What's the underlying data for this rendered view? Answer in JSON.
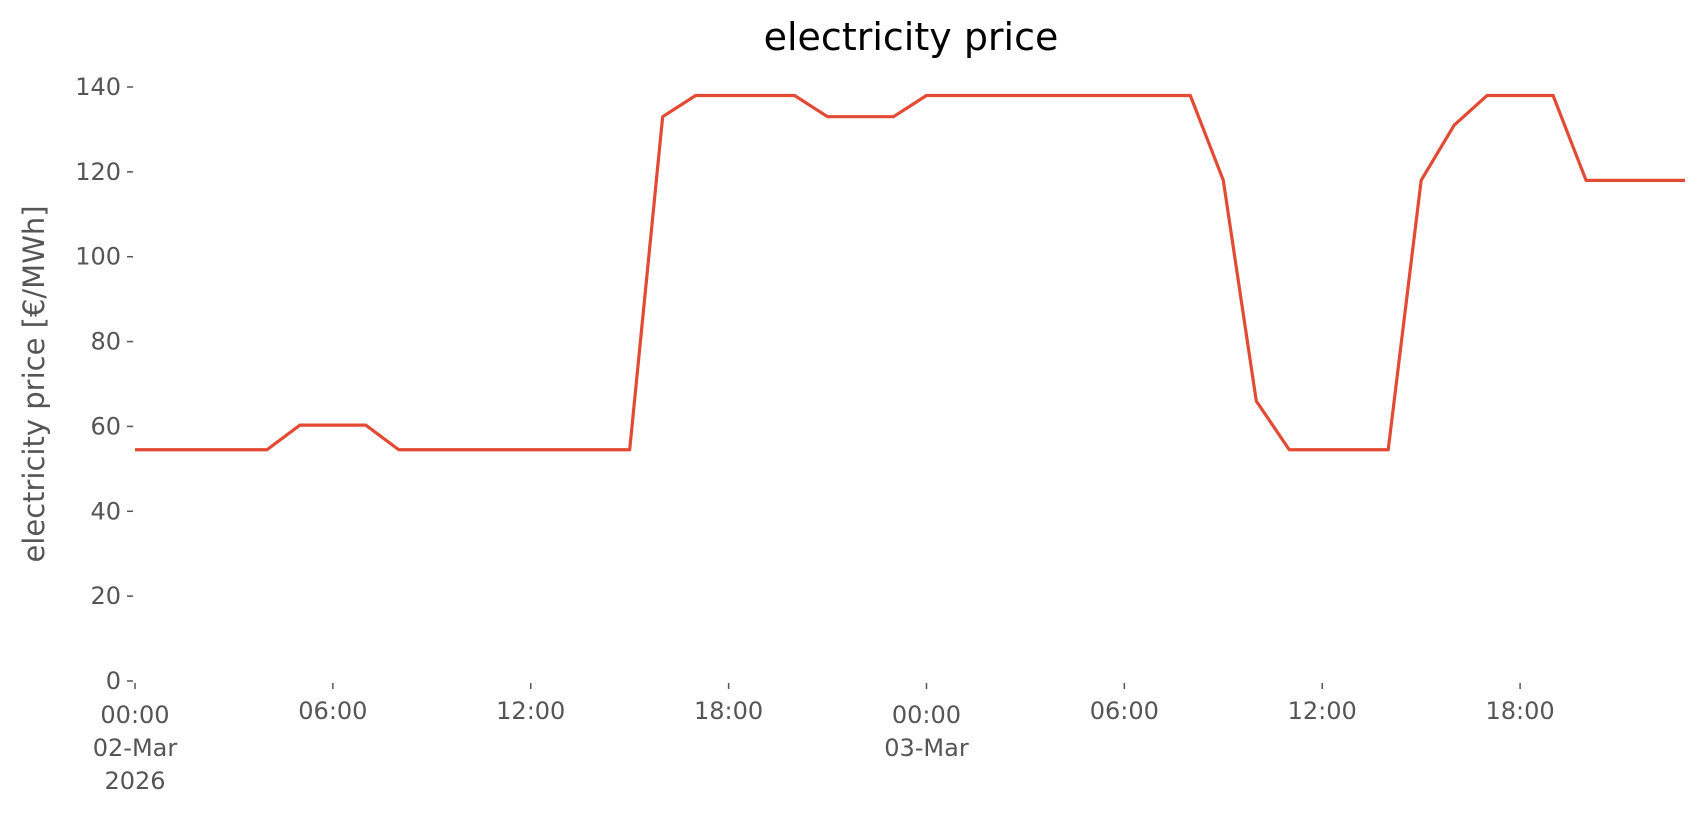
{
  "chart_data": {
    "type": "line",
    "title": "electricity price",
    "y_label": "electricity price [€/MWh]",
    "x": [
      "2026-03-02 00:00",
      "2026-03-02 01:00",
      "2026-03-02 02:00",
      "2026-03-02 03:00",
      "2026-03-02 04:00",
      "2026-03-02 05:00",
      "2026-03-02 06:00",
      "2026-03-02 07:00",
      "2026-03-02 08:00",
      "2026-03-02 09:00",
      "2026-03-02 10:00",
      "2026-03-02 11:00",
      "2026-03-02 12:00",
      "2026-03-02 13:00",
      "2026-03-02 14:00",
      "2026-03-02 15:00",
      "2026-03-02 16:00",
      "2026-03-02 17:00",
      "2026-03-02 18:00",
      "2026-03-02 19:00",
      "2026-03-02 20:00",
      "2026-03-02 21:00",
      "2026-03-02 22:00",
      "2026-03-02 23:00",
      "2026-03-03 00:00",
      "2026-03-03 01:00",
      "2026-03-03 02:00",
      "2026-03-03 03:00",
      "2026-03-03 04:00",
      "2026-03-03 05:00",
      "2026-03-03 06:00",
      "2026-03-03 07:00",
      "2026-03-03 08:00",
      "2026-03-03 09:00",
      "2026-03-03 10:00",
      "2026-03-03 11:00",
      "2026-03-03 12:00",
      "2026-03-03 13:00",
      "2026-03-03 14:00",
      "2026-03-03 15:00",
      "2026-03-03 16:00",
      "2026-03-03 17:00",
      "2026-03-03 18:00",
      "2026-03-03 19:00",
      "2026-03-03 20:00",
      "2026-03-03 21:00",
      "2026-03-03 22:00",
      "2026-03-03 23:00"
    ],
    "series": [
      {
        "name": "electricity price",
        "color": "#e24a33",
        "values": [
          54.5,
          54.5,
          54.5,
          54.5,
          54.5,
          60.3,
          60.3,
          60.3,
          54.5,
          54.5,
          54.5,
          54.5,
          54.5,
          54.5,
          54.5,
          54.5,
          133,
          138,
          138,
          138,
          138,
          133,
          133,
          133,
          138,
          138,
          138,
          138,
          138,
          138,
          138,
          138,
          138,
          118,
          66,
          54.5,
          54.5,
          54.5,
          54.5,
          118,
          131,
          138,
          138,
          138,
          118,
          118,
          118,
          118
        ]
      }
    ],
    "xlim": [
      "2026-03-02 00:00",
      "2026-03-03 23:00"
    ],
    "xticks": [
      {
        "value": "2026-03-02 00:00",
        "label": "00:00\n02-Mar\n2026"
      },
      {
        "value": "2026-03-02 06:00",
        "label": "06:00"
      },
      {
        "value": "2026-03-02 12:00",
        "label": "12:00"
      },
      {
        "value": "2026-03-02 18:00",
        "label": "18:00"
      },
      {
        "value": "2026-03-03 00:00",
        "label": "00:00\n03-Mar"
      },
      {
        "value": "2026-03-03 06:00",
        "label": "06:00"
      },
      {
        "value": "2026-03-03 12:00",
        "label": "12:00"
      },
      {
        "value": "2026-03-03 18:00",
        "label": "18:00"
      }
    ],
    "ylim": [
      0,
      140
    ],
    "yticks": [
      0,
      20,
      40,
      60,
      80,
      100,
      120,
      140
    ],
    "grid": false
  }
}
